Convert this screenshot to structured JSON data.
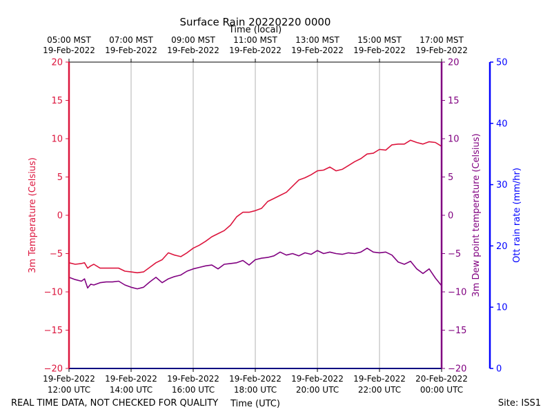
{
  "chart_data": {
    "type": "line",
    "title": "Surface Rain 20220220 0000",
    "top_axis_label": "Time (local)",
    "xlabel": "Time (UTC)",
    "footer_left": "REAL TIME DATA, NOT CHECKED FOR QUALITY",
    "footer_right": "Site: ISS1",
    "x_unit": "hours since 2022-02-19 12:00 UTC",
    "xlim": [
      0,
      12
    ],
    "x_ticks": [
      0,
      2,
      4,
      6,
      8,
      10,
      12
    ],
    "bottom_tick_labels": [
      [
        "19-Feb-2022",
        "12:00 UTC"
      ],
      [
        "19-Feb-2022",
        "14:00 UTC"
      ],
      [
        "19-Feb-2022",
        "16:00 UTC"
      ],
      [
        "19-Feb-2022",
        "18:00 UTC"
      ],
      [
        "19-Feb-2022",
        "20:00 UTC"
      ],
      [
        "19-Feb-2022",
        "22:00 UTC"
      ],
      [
        "20-Feb-2022",
        "00:00 UTC"
      ]
    ],
    "top_tick_labels": [
      [
        "05:00 MST",
        "19-Feb-2022"
      ],
      [
        "07:00 MST",
        "19-Feb-2022"
      ],
      [
        "09:00 MST",
        "19-Feb-2022"
      ],
      [
        "11:00 MST",
        "19-Feb-2022"
      ],
      [
        "13:00 MST",
        "19-Feb-2022"
      ],
      [
        "15:00 MST",
        "19-Feb-2022"
      ],
      [
        "17:00 MST",
        "19-Feb-2022"
      ]
    ],
    "y_left": {
      "label": "3m Temperature (Celsius)",
      "lim": [
        -20,
        20
      ],
      "ticks": [
        20,
        15,
        10,
        5,
        0,
        -5,
        -10,
        -15,
        -20
      ],
      "color": "#dc143c"
    },
    "y_right_inner": {
      "label": "3m Dew point temperature (Celsius)",
      "lim": [
        -20,
        20
      ],
      "ticks": [
        20,
        15,
        10,
        5,
        0,
        -5,
        -10,
        -15,
        -20
      ],
      "color": "#800080"
    },
    "y_right_outer": {
      "label": "Ott rain rate (mm/hr)",
      "lim": [
        0,
        50
      ],
      "ticks": [
        50,
        40,
        30,
        20,
        10,
        0
      ],
      "color": "#0000ff"
    },
    "series": [
      {
        "name": "3m Temperature",
        "color": "#dc143c",
        "x": [
          0,
          0.2,
          0.4,
          0.5,
          0.6,
          0.7,
          0.8,
          1.0,
          1.2,
          1.4,
          1.6,
          1.8,
          2.0,
          2.2,
          2.4,
          2.6,
          2.8,
          3.0,
          3.2,
          3.4,
          3.6,
          3.8,
          4.0,
          4.2,
          4.4,
          4.6,
          4.8,
          5.0,
          5.2,
          5.4,
          5.6,
          5.8,
          6.0,
          6.2,
          6.4,
          6.6,
          6.8,
          7.0,
          7.2,
          7.4,
          7.6,
          7.8,
          8.0,
          8.2,
          8.4,
          8.6,
          8.8,
          9.0,
          9.2,
          9.4,
          9.6,
          9.8,
          10.0,
          10.2,
          10.4,
          10.6,
          10.8,
          11.0,
          11.2,
          11.4,
          11.6,
          11.8,
          12.0
        ],
        "values": [
          -6.2,
          -6.4,
          -6.3,
          -6.2,
          -6.9,
          -6.6,
          -6.4,
          -6.9,
          -6.9,
          -6.9,
          -6.9,
          -7.3,
          -7.4,
          -7.5,
          -7.4,
          -6.8,
          -6.2,
          -5.8,
          -4.9,
          -5.2,
          -5.4,
          -4.9,
          -4.3,
          -3.9,
          -3.4,
          -2.8,
          -2.4,
          -2.0,
          -1.3,
          -0.2,
          0.4,
          0.4,
          0.6,
          0.9,
          1.8,
          2.2,
          2.6,
          3.0,
          3.8,
          4.6,
          4.9,
          5.3,
          5.8,
          5.9,
          6.3,
          5.8,
          6.0,
          6.5,
          7.0,
          7.4,
          8.0,
          8.1,
          8.6,
          8.5,
          9.2,
          9.3,
          9.3,
          9.8,
          9.5,
          9.3,
          9.6,
          9.5,
          9.0
        ]
      },
      {
        "name": "3m Dew point temperature",
        "color": "#800080",
        "x": [
          0,
          0.2,
          0.4,
          0.5,
          0.6,
          0.7,
          0.8,
          1.0,
          1.2,
          1.4,
          1.6,
          1.8,
          2.0,
          2.2,
          2.4,
          2.6,
          2.8,
          3.0,
          3.2,
          3.4,
          3.6,
          3.8,
          4.0,
          4.2,
          4.4,
          4.6,
          4.8,
          5.0,
          5.2,
          5.4,
          5.6,
          5.8,
          6.0,
          6.2,
          6.4,
          6.6,
          6.8,
          7.0,
          7.2,
          7.4,
          7.6,
          7.8,
          8.0,
          8.2,
          8.4,
          8.6,
          8.8,
          9.0,
          9.2,
          9.4,
          9.6,
          9.8,
          10.0,
          10.2,
          10.4,
          10.6,
          10.8,
          11.0,
          11.2,
          11.4,
          11.6,
          11.8,
          12.0
        ],
        "values": [
          -8.1,
          -8.4,
          -8.6,
          -8.3,
          -9.5,
          -9.0,
          -9.1,
          -8.8,
          -8.7,
          -8.7,
          -8.6,
          -9.1,
          -9.4,
          -9.6,
          -9.4,
          -8.7,
          -8.1,
          -8.8,
          -8.3,
          -8.0,
          -7.8,
          -7.3,
          -7.0,
          -6.8,
          -6.6,
          -6.5,
          -7.0,
          -6.4,
          -6.3,
          -6.2,
          -5.9,
          -6.5,
          -5.8,
          -5.6,
          -5.5,
          -5.3,
          -4.8,
          -5.2,
          -5.0,
          -5.3,
          -4.9,
          -5.1,
          -4.6,
          -5.0,
          -4.8,
          -5.0,
          -5.1,
          -4.9,
          -5.0,
          -4.8,
          -4.3,
          -4.8,
          -4.9,
          -4.8,
          -5.2,
          -6.1,
          -6.4,
          -6.0,
          -7.0,
          -7.6,
          -7.0,
          -8.2,
          -9.2
        ]
      },
      {
        "name": "Ott rain rate",
        "color": "#0000ff",
        "x": [
          0,
          12
        ],
        "values": [
          0,
          0
        ]
      }
    ]
  }
}
